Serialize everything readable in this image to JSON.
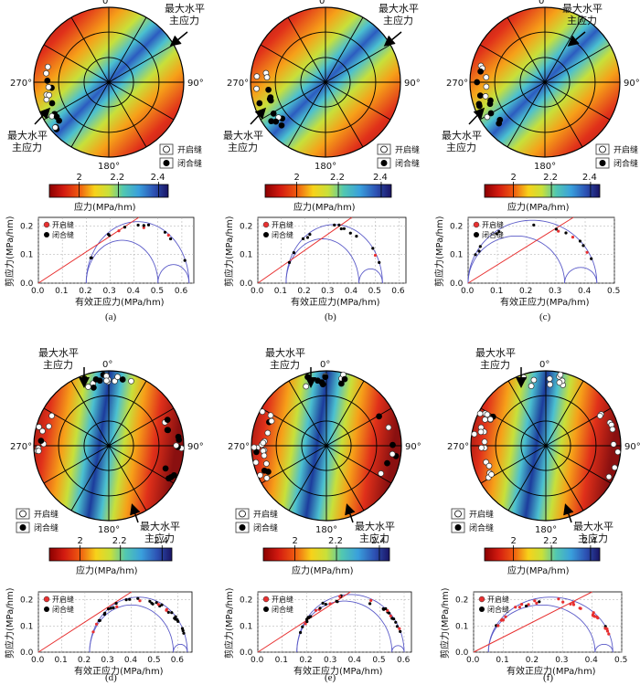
{
  "panels": [
    {
      "id": "a",
      "caption": "(a)",
      "orientation": "horizontal",
      "labels": {
        "n": "0°",
        "e": "90°",
        "s": "180°",
        "w": "270°"
      },
      "shmax_label_top": [
        "最大水平",
        "主应力"
      ],
      "shmax_label_bottom": [
        "最大水平",
        "主应力"
      ],
      "legend": {
        "open": "开启缝",
        "closed": "闭合缝"
      },
      "colorbar": {
        "ticks": [
          "2",
          "2.2",
          "2.4"
        ],
        "title": "应力(MPa/hm)"
      },
      "chart_data": {
        "type": "scatter",
        "xlabel": "有效正应力(MPa/hm)",
        "ylabel": "剪应力(MPa/hm)",
        "xticks": [
          "0.0",
          "0.1",
          "0.2",
          "0.3",
          "0.4",
          "0.5",
          "0.6"
        ],
        "yticks": [
          "0.0",
          "0.1",
          "0.2"
        ],
        "xlim": [
          0,
          0.65
        ],
        "ylim": [
          0,
          0.23
        ],
        "sigma": [
          0.2,
          0.5,
          0.63
        ],
        "failure_line": {
          "x0": 0.0,
          "y0": 0.0,
          "x1": 0.42,
          "y1": 0.23
        },
        "legend": [
          "开启缝",
          "闭合缝"
        ]
      }
    },
    {
      "id": "b",
      "caption": "(b)",
      "orientation": "horizontal",
      "labels": {
        "n": "0°",
        "e": "90°",
        "s": "180°",
        "w": "270°"
      },
      "shmax_label_top": [
        "最大水平",
        "主应力"
      ],
      "shmax_label_bottom": [
        "最大水平",
        "主应力"
      ],
      "legend": {
        "open": "开启缝",
        "closed": "闭合缝"
      },
      "colorbar": {
        "ticks": [
          "2",
          "2.2",
          "2.4"
        ],
        "title": "应力(MPa/hm)"
      },
      "chart_data": {
        "type": "scatter",
        "xlabel": "有效正应力(MPa/hm)",
        "ylabel": "剪应力(MPa/hm)",
        "xticks": [
          "0.0",
          "0.1",
          "0.2",
          "0.3",
          "0.4",
          "0.5",
          "0.6"
        ],
        "yticks": [
          "0.0",
          "0.1",
          "0.2"
        ],
        "xlim": [
          0,
          0.63
        ],
        "ylim": [
          0,
          0.23
        ],
        "sigma": [
          0.12,
          0.43,
          0.53
        ],
        "failure_line": {
          "x0": 0.0,
          "y0": 0.0,
          "x1": 0.4,
          "y1": 0.23
        },
        "legend": [
          "开启缝",
          "闭合缝"
        ]
      }
    },
    {
      "id": "c",
      "caption": "(c)",
      "orientation": "horizontal",
      "labels": {
        "n": "0°",
        "e": "90°",
        "s": "180°",
        "w": "270°"
      },
      "shmax_label_top": [
        "最大水平",
        "主应力"
      ],
      "shmax_label_bottom": [
        "最大水平",
        "主应力"
      ],
      "legend": {
        "open": "开启缝",
        "closed": "闭合缝"
      },
      "colorbar": {
        "ticks": [
          "2",
          "2.2",
          "2.4"
        ],
        "title": "应力(MPa/hm)"
      },
      "chart_data": {
        "type": "scatter",
        "xlabel": "有效正应力(MPa/hm)",
        "ylabel": "剪应力(MPa/hm)",
        "xticks": [
          "0.0",
          "0.1",
          "0.2",
          "0.3",
          "0.4",
          "0.5"
        ],
        "yticks": [
          "0.0",
          "0.1",
          "0.2"
        ],
        "xlim": [
          0,
          0.5
        ],
        "ylim": [
          0,
          0.23
        ],
        "sigma": [
          0.0,
          0.33,
          0.44
        ],
        "failure_line": {
          "x0": 0.0,
          "y0": 0.0,
          "x1": 0.36,
          "y1": 0.23
        },
        "legend": [
          "开启缝",
          "闭合缝"
        ]
      }
    },
    {
      "id": "d",
      "caption": "(d)",
      "orientation": "vertical",
      "labels": {
        "n": "0°",
        "e": "90°",
        "s": "180°",
        "w": "270°"
      },
      "shmax_label_top": [
        "最大水平",
        "主应力"
      ],
      "shmax_label_bottom": [
        "最大水平",
        "主应力"
      ],
      "legend": {
        "open": "开启缝",
        "closed": "闭合缝"
      },
      "colorbar": {
        "ticks": [
          "2",
          "2.2",
          "2.4"
        ],
        "title": "应力(MPa/hm)"
      },
      "chart_data": {
        "type": "scatter",
        "xlabel": "有效正应力(MPa/hm)",
        "ylabel": "剪应力(MPa/hm)",
        "xticks": [
          "0.0",
          "0.1",
          "0.2",
          "0.3",
          "0.4",
          "0.5",
          "0.6"
        ],
        "yticks": [
          "0.0",
          "0.1",
          "0.2"
        ],
        "xlim": [
          0,
          0.66
        ],
        "ylim": [
          0,
          0.23
        ],
        "sigma": [
          0.22,
          0.58,
          0.64
        ],
        "failure_line": {
          "x0": 0.0,
          "y0": 0.0,
          "x1": 0.4,
          "y1": 0.23
        },
        "legend": [
          "开启缝",
          "闭合缝"
        ]
      }
    },
    {
      "id": "e",
      "caption": "(e)",
      "orientation": "vertical",
      "labels": {
        "n": "0°",
        "e": "90°",
        "s": "180°",
        "w": "270°"
      },
      "shmax_label_top": [
        "最大水平",
        "主应力"
      ],
      "shmax_label_bottom": [
        "最大水平",
        "主应力"
      ],
      "legend": {
        "open": "开启缝",
        "closed": "闭合缝"
      },
      "colorbar": {
        "ticks": [
          "2",
          "2.2",
          "2.4"
        ],
        "title": "应力(MPa/hm)"
      },
      "chart_data": {
        "type": "scatter",
        "xlabel": "有效正应力(MPa/hm)",
        "ylabel": "剪应力(MPa/hm)",
        "xticks": [
          "0.0",
          "0.1",
          "0.2",
          "0.3",
          "0.4",
          "0.5",
          "0.6"
        ],
        "yticks": [
          "0.0",
          "0.1",
          "0.2"
        ],
        "xlim": [
          0,
          0.63
        ],
        "ylim": [
          0,
          0.23
        ],
        "sigma": [
          0.16,
          0.55,
          0.6
        ],
        "failure_line": {
          "x0": 0.0,
          "y0": 0.0,
          "x1": 0.38,
          "y1": 0.23
        },
        "legend": [
          "开启缝",
          "闭合缝"
        ]
      }
    },
    {
      "id": "f",
      "caption": "(f)",
      "orientation": "vertical",
      "labels": {
        "n": "0°",
        "e": "90°",
        "s": "180°",
        "w": "270°"
      },
      "shmax_label_top": [
        "最大水平",
        "主应力"
      ],
      "shmax_label_bottom": [
        "最大水平",
        "主应力"
      ],
      "legend": {
        "open": "开启缝",
        "closed": "闭合缝"
      },
      "colorbar": {
        "ticks": [
          "2",
          "2.2",
          "2.4"
        ],
        "title": "应力(MPa/hm)"
      },
      "chart_data": {
        "type": "scatter",
        "xlabel": "有效正应力(MPa/hm)",
        "ylabel": "剪应力(MPa/hm)",
        "xticks": [
          "0.0",
          "0.1",
          "0.2",
          "0.3",
          "0.4",
          "0.5"
        ],
        "yticks": [
          "0.0",
          "0.1",
          "0.2"
        ],
        "xlim": [
          0,
          0.5
        ],
        "ylim": [
          0,
          0.23
        ],
        "sigma": [
          0.05,
          0.41,
          0.47
        ],
        "failure_line": {
          "x0": 0.0,
          "y0": 0.0,
          "x1": 0.4,
          "y1": 0.23
        },
        "legend": [
          "开启缝",
          "闭合缝"
        ]
      }
    }
  ],
  "colors": {
    "open": "#ffffff",
    "closed": "#000000",
    "mohr_circle": "#5b5bc8",
    "failure_line": "#e83030",
    "open_mohr": "#e83030"
  }
}
